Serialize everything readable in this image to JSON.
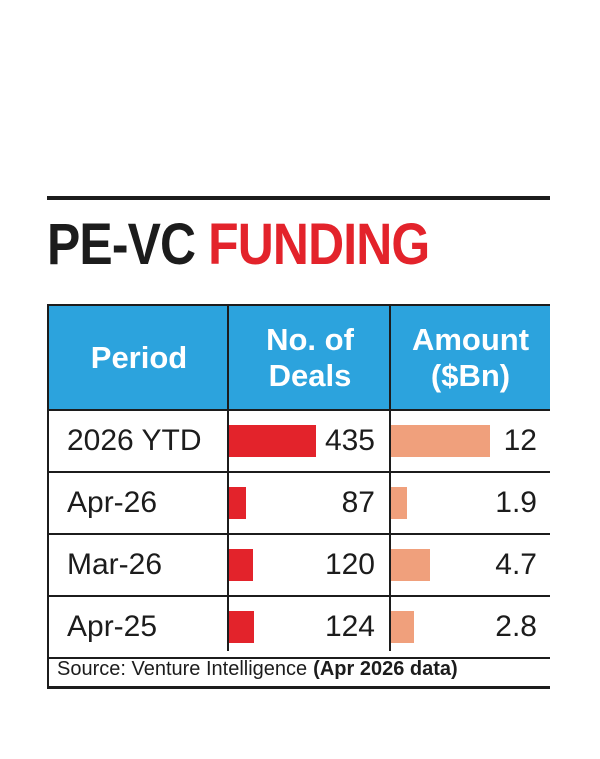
{
  "title": {
    "part1": "PE-VC",
    "part2": "FUNDING"
  },
  "headers": {
    "period": "Period",
    "deals": "No. of\nDeals",
    "amount": "Amount\n($Bn)"
  },
  "source": {
    "text": "Source: Venture Intelligence",
    "note": "(Apr 2026 data)"
  },
  "colors": {
    "header": "#2ca3dd",
    "deals_bar": "#e3232b",
    "amount_bar": "#f0a07c",
    "title_red": "#e3232b"
  },
  "chart_data": {
    "type": "table",
    "title": "PE-VC FUNDING",
    "columns": [
      "Period",
      "No. of Deals",
      "Amount ($Bn)"
    ],
    "categories": [
      "2026 YTD",
      "Apr-26",
      "Mar-26",
      "Apr-25"
    ],
    "series": [
      {
        "name": "No. of Deals",
        "values": [
          435,
          87,
          120,
          124
        ],
        "labels": [
          "435",
          "87",
          "120",
          "124"
        ]
      },
      {
        "name": "Amount ($Bn)",
        "values": [
          12,
          1.9,
          4.7,
          2.8
        ],
        "labels": [
          "12",
          "1.9",
          "4.7",
          "2.8"
        ]
      }
    ]
  }
}
